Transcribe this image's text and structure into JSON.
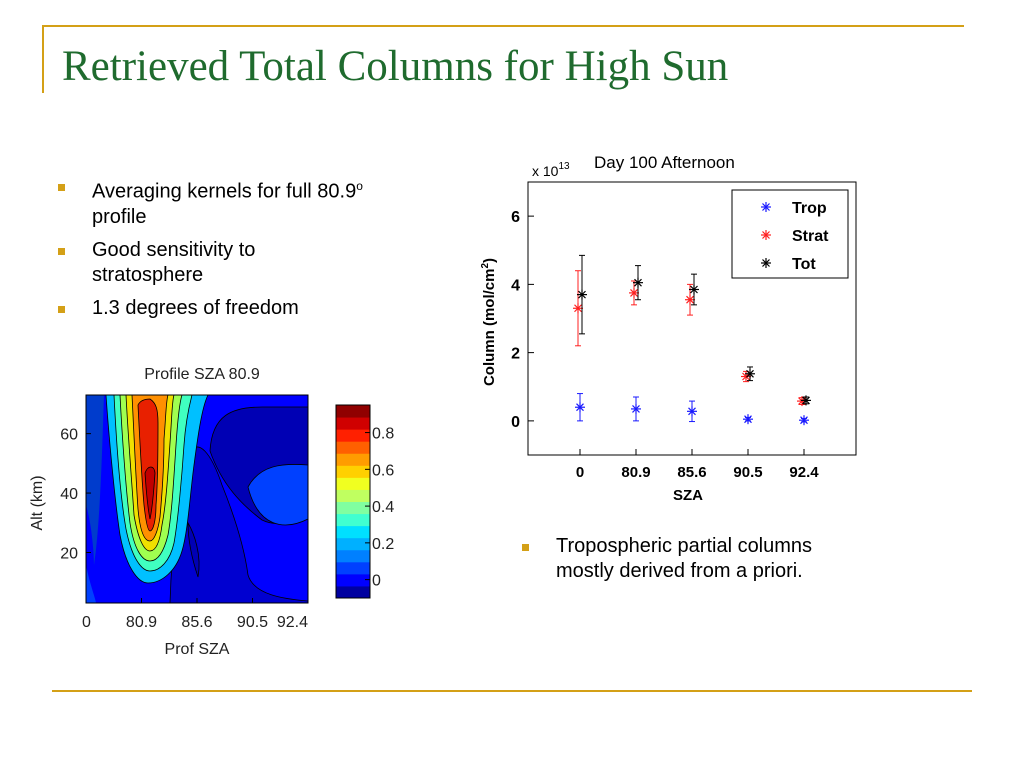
{
  "slide": {
    "title": "Retrieved Total Columns for High Sun",
    "bullets_left": [
      {
        "text": "Averaging kernels for full 80.9",
        "sup": "o",
        "after": " profile"
      },
      {
        "text": "Good sensitivity to stratosphere"
      },
      {
        "text": "1.3 degrees of freedom"
      }
    ],
    "bullets_right": [
      {
        "text": "Tropospheric partial columns mostly derived from a priori."
      }
    ],
    "colors": {
      "title": "#1f6b2e",
      "accent": "#d4a017"
    }
  },
  "chart_data": [
    {
      "type": "heatmap",
      "title": "Profile SZA 80.9",
      "xlabel": "Prof SZA",
      "ylabel": "Alt (km)",
      "x_ticks": [
        "0",
        "80.9",
        "85.6",
        "90.5",
        "92.4"
      ],
      "y_ticks": [
        20,
        40,
        60
      ],
      "ylim": [
        3,
        73
      ],
      "colorbar": {
        "ticks": [
          "0",
          "0.2",
          "0.4",
          "0.6",
          "0.8"
        ],
        "range": [
          -0.1,
          0.95
        ]
      },
      "peak": {
        "x": "80.9",
        "alt_km": 33,
        "value": 0.95
      }
    },
    {
      "type": "scatter",
      "title": "Day 100 Afternoon",
      "scale_label": "x 10",
      "scale_exp": "13",
      "xlabel": "SZA",
      "ylabel": "Column (mol/cm",
      "ylabel_sup": "2",
      "ylabel_end": ")",
      "categories": [
        "0",
        "80.9",
        "85.6",
        "90.5",
        "92.4"
      ],
      "ylim": [
        -1,
        7
      ],
      "y_ticks": [
        0,
        2,
        4,
        6
      ],
      "legend_position": "top-right",
      "series": [
        {
          "name": "Trop",
          "color": "#1a1aff",
          "values": [
            0.4,
            0.35,
            0.28,
            0.05,
            0.02
          ],
          "errors": [
            0.4,
            0.35,
            0.3,
            0.05,
            0.05
          ]
        },
        {
          "name": "Strat",
          "color": "#ff2020",
          "values": [
            3.3,
            3.75,
            3.55,
            1.3,
            0.58
          ],
          "errors": [
            1.1,
            0.35,
            0.45,
            0.15,
            0.1
          ]
        },
        {
          "name": "Tot",
          "color": "#000000",
          "values": [
            3.7,
            4.05,
            3.85,
            1.38,
            0.6
          ],
          "errors": [
            1.15,
            0.5,
            0.45,
            0.2,
            0.1
          ]
        }
      ]
    }
  ]
}
